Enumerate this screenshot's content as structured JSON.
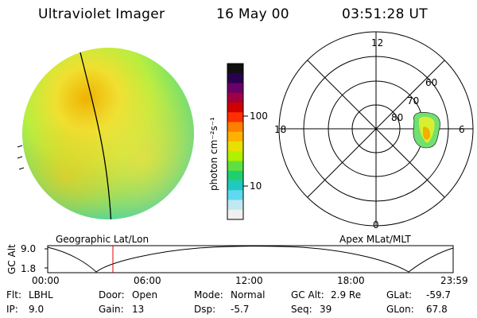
{
  "header": {
    "title": "Ultraviolet Imager",
    "date": "16 May 00",
    "time": "03:51:28 UT"
  },
  "colorbar": {
    "unit_label": "photon cm⁻²s⁻¹",
    "ticks": [
      "100",
      "10"
    ],
    "colors": [
      "#101010",
      "#2a0050",
      "#6a006a",
      "#a00040",
      "#d00000",
      "#ff3000",
      "#ff8000",
      "#ffb000",
      "#e8e000",
      "#b0f000",
      "#60e040",
      "#20d070",
      "#20c8c0",
      "#60d8f0",
      "#c0e8f0",
      "#f0f0f0"
    ]
  },
  "polar": {
    "mlt_labels": {
      "top": "12",
      "left": "18",
      "right": "6",
      "bottom": "0"
    },
    "lat_labels": [
      "60",
      "70",
      "80"
    ]
  },
  "track": {
    "left_label": "Geographic Lat/Lon",
    "right_label": "Apex MLat/MLT",
    "axis_label": "GC Alt",
    "y_ticks": [
      "9.0",
      "1.8"
    ],
    "x_ticks": [
      "00:00",
      "06:00",
      "12:00",
      "18:00",
      "23:59"
    ],
    "current_time_hours": 3.86
  },
  "status": {
    "flt_label": "Flt:",
    "flt_value": "LBHL",
    "ip_label": "IP:",
    "ip_value": "9.0",
    "door_label": "Door:",
    "door_value": "Open",
    "gain_label": "Gain:",
    "gain_value": "13",
    "mode_label": "Mode:",
    "mode_value": "Normal",
    "dsp_label": "Dsp:",
    "dsp_value": "-5.7",
    "gcalt_label": "GC Alt:",
    "gcalt_value": "2.9 Re",
    "seq_label": "Seq:",
    "seq_value": "39",
    "glat_label": "GLat:",
    "glat_value": "-59.7",
    "glon_label": "GLon:",
    "glon_value": "67.8"
  }
}
